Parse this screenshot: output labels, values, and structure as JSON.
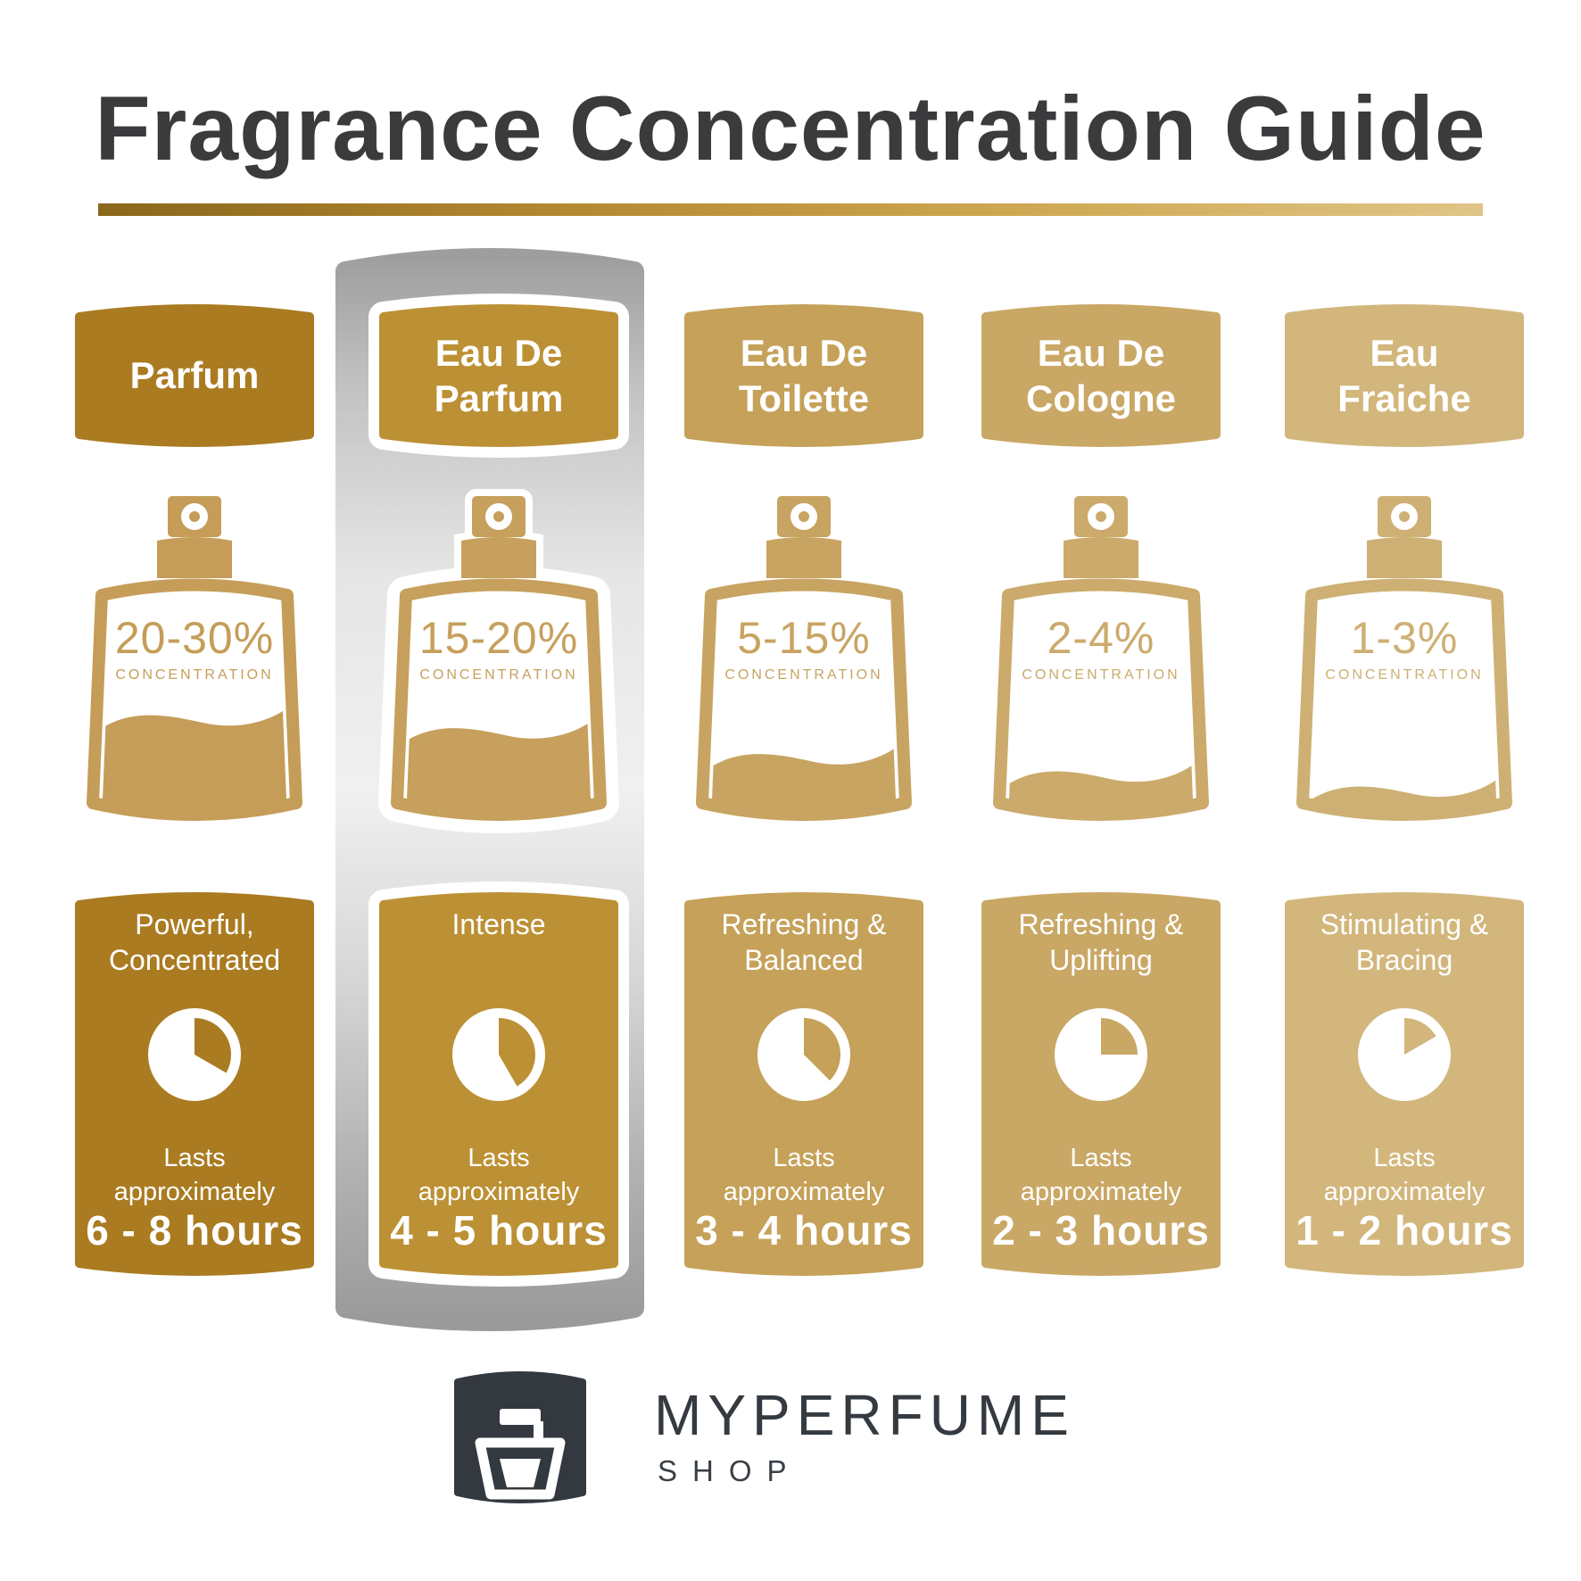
{
  "title": "Fragrance Concentration Guide",
  "styles": {
    "title_color": "#3b3b3d",
    "rule_gradient_start": "#8a671c",
    "rule_gradient_end": "#e0c587",
    "highlight_silver": "#e9e9e9",
    "logo_dark": "#343940"
  },
  "columns": [
    {
      "name_lines": [
        "Parfum"
      ],
      "concentration": "20-30%",
      "concentration_label": "CONCENTRATION",
      "bottle_fill_percent": 46,
      "description_lines": [
        "Powerful,",
        "Concentrated"
      ],
      "lasts_lines": [
        "Lasts",
        "approximately"
      ],
      "hours": "6 - 8 hours",
      "pie_empty_degrees": 120,
      "color": "#aa7b21",
      "bottle_color": "#c59d58",
      "highlighted": false
    },
    {
      "name_lines": [
        "Eau De",
        "Parfum"
      ],
      "concentration": "15-20%",
      "concentration_label": "CONCENTRATION",
      "bottle_fill_percent": 40,
      "description_lines": [
        "Intense"
      ],
      "lasts_lines": [
        "Lasts",
        "approximately"
      ],
      "hours": "4 - 5 hours",
      "pie_empty_degrees": 150,
      "color": "#bc9034",
      "bottle_color": "#c6a05c",
      "highlighted": true
    },
    {
      "name_lines": [
        "Eau De",
        "Toilette"
      ],
      "concentration": "5-15%",
      "concentration_label": "CONCENTRATION",
      "bottle_fill_percent": 28,
      "description_lines": [
        "Refreshing &",
        "Balanced"
      ],
      "lasts_lines": [
        "Lasts",
        "approximately"
      ],
      "hours": "3 - 4 hours",
      "pie_empty_degrees": 135,
      "color": "#c5a159",
      "bottle_color": "#c8a462",
      "highlighted": false
    },
    {
      "name_lines": [
        "Eau De",
        "Cologne"
      ],
      "concentration": "2-4%",
      "concentration_label": "CONCENTRATION",
      "bottle_fill_percent": 20,
      "description_lines": [
        "Refreshing &",
        "Uplifting"
      ],
      "lasts_lines": [
        "Lasts",
        "approximately"
      ],
      "hours": "2 - 3 hours",
      "pie_empty_degrees": 90,
      "color": "#c9a765",
      "bottle_color": "#cbaa6b",
      "highlighted": false
    },
    {
      "name_lines": [
        "Eau",
        "Fraiche"
      ],
      "concentration": "1-3%",
      "concentration_label": "CONCENTRATION",
      "bottle_fill_percent": 13,
      "description_lines": [
        "Stimulating &",
        "Bracing"
      ],
      "lasts_lines": [
        "Lasts",
        "approximately"
      ],
      "hours": "1 - 2 hours",
      "pie_empty_degrees": 60,
      "color": "#d2b67c",
      "bottle_color": "#ceb074",
      "highlighted": false
    }
  ],
  "footer": {
    "brand": "MYPERFUME",
    "sub": "SHOP"
  }
}
